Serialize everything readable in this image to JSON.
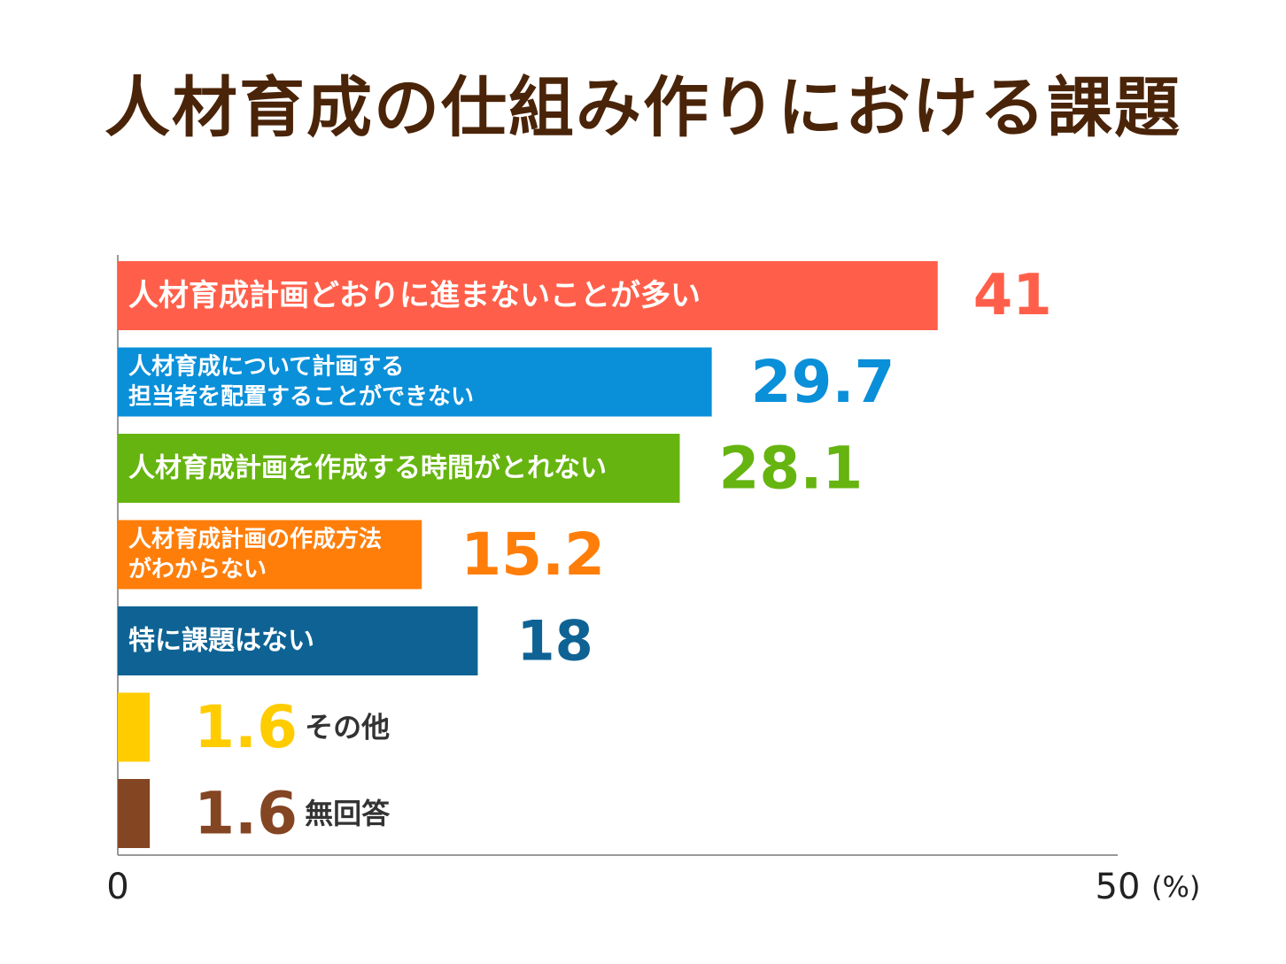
{
  "chart_data": {
    "type": "bar",
    "orientation": "horizontal",
    "title": "人材育成の仕組み作りにおける課題",
    "categories": [
      "人材育成計画どおりに進まないことが多い",
      "人材育成について計画する\n担当者を配置することができない",
      "人材育成計画を作成する時間がとれない",
      "人材育成計画の作成方法\nがわからない",
      "特に課題はない",
      "その他",
      "無回答"
    ],
    "values": [
      41,
      29.7,
      28.1,
      15.2,
      18,
      1.6,
      1.6
    ],
    "value_labels": [
      "41",
      "29.7",
      "28.1",
      "15.2",
      "18",
      "1.6",
      "1.6"
    ],
    "colors": [
      "#ff5f4a",
      "#0a8fd9",
      "#66b410",
      "#ff7e0a",
      "#0e6394",
      "#ffcc00",
      "#844523"
    ],
    "xlim": [
      0,
      50
    ],
    "x_tick_labels": [
      "0",
      "50"
    ],
    "x_unit": "(%)",
    "grid": false,
    "legend": "none"
  }
}
